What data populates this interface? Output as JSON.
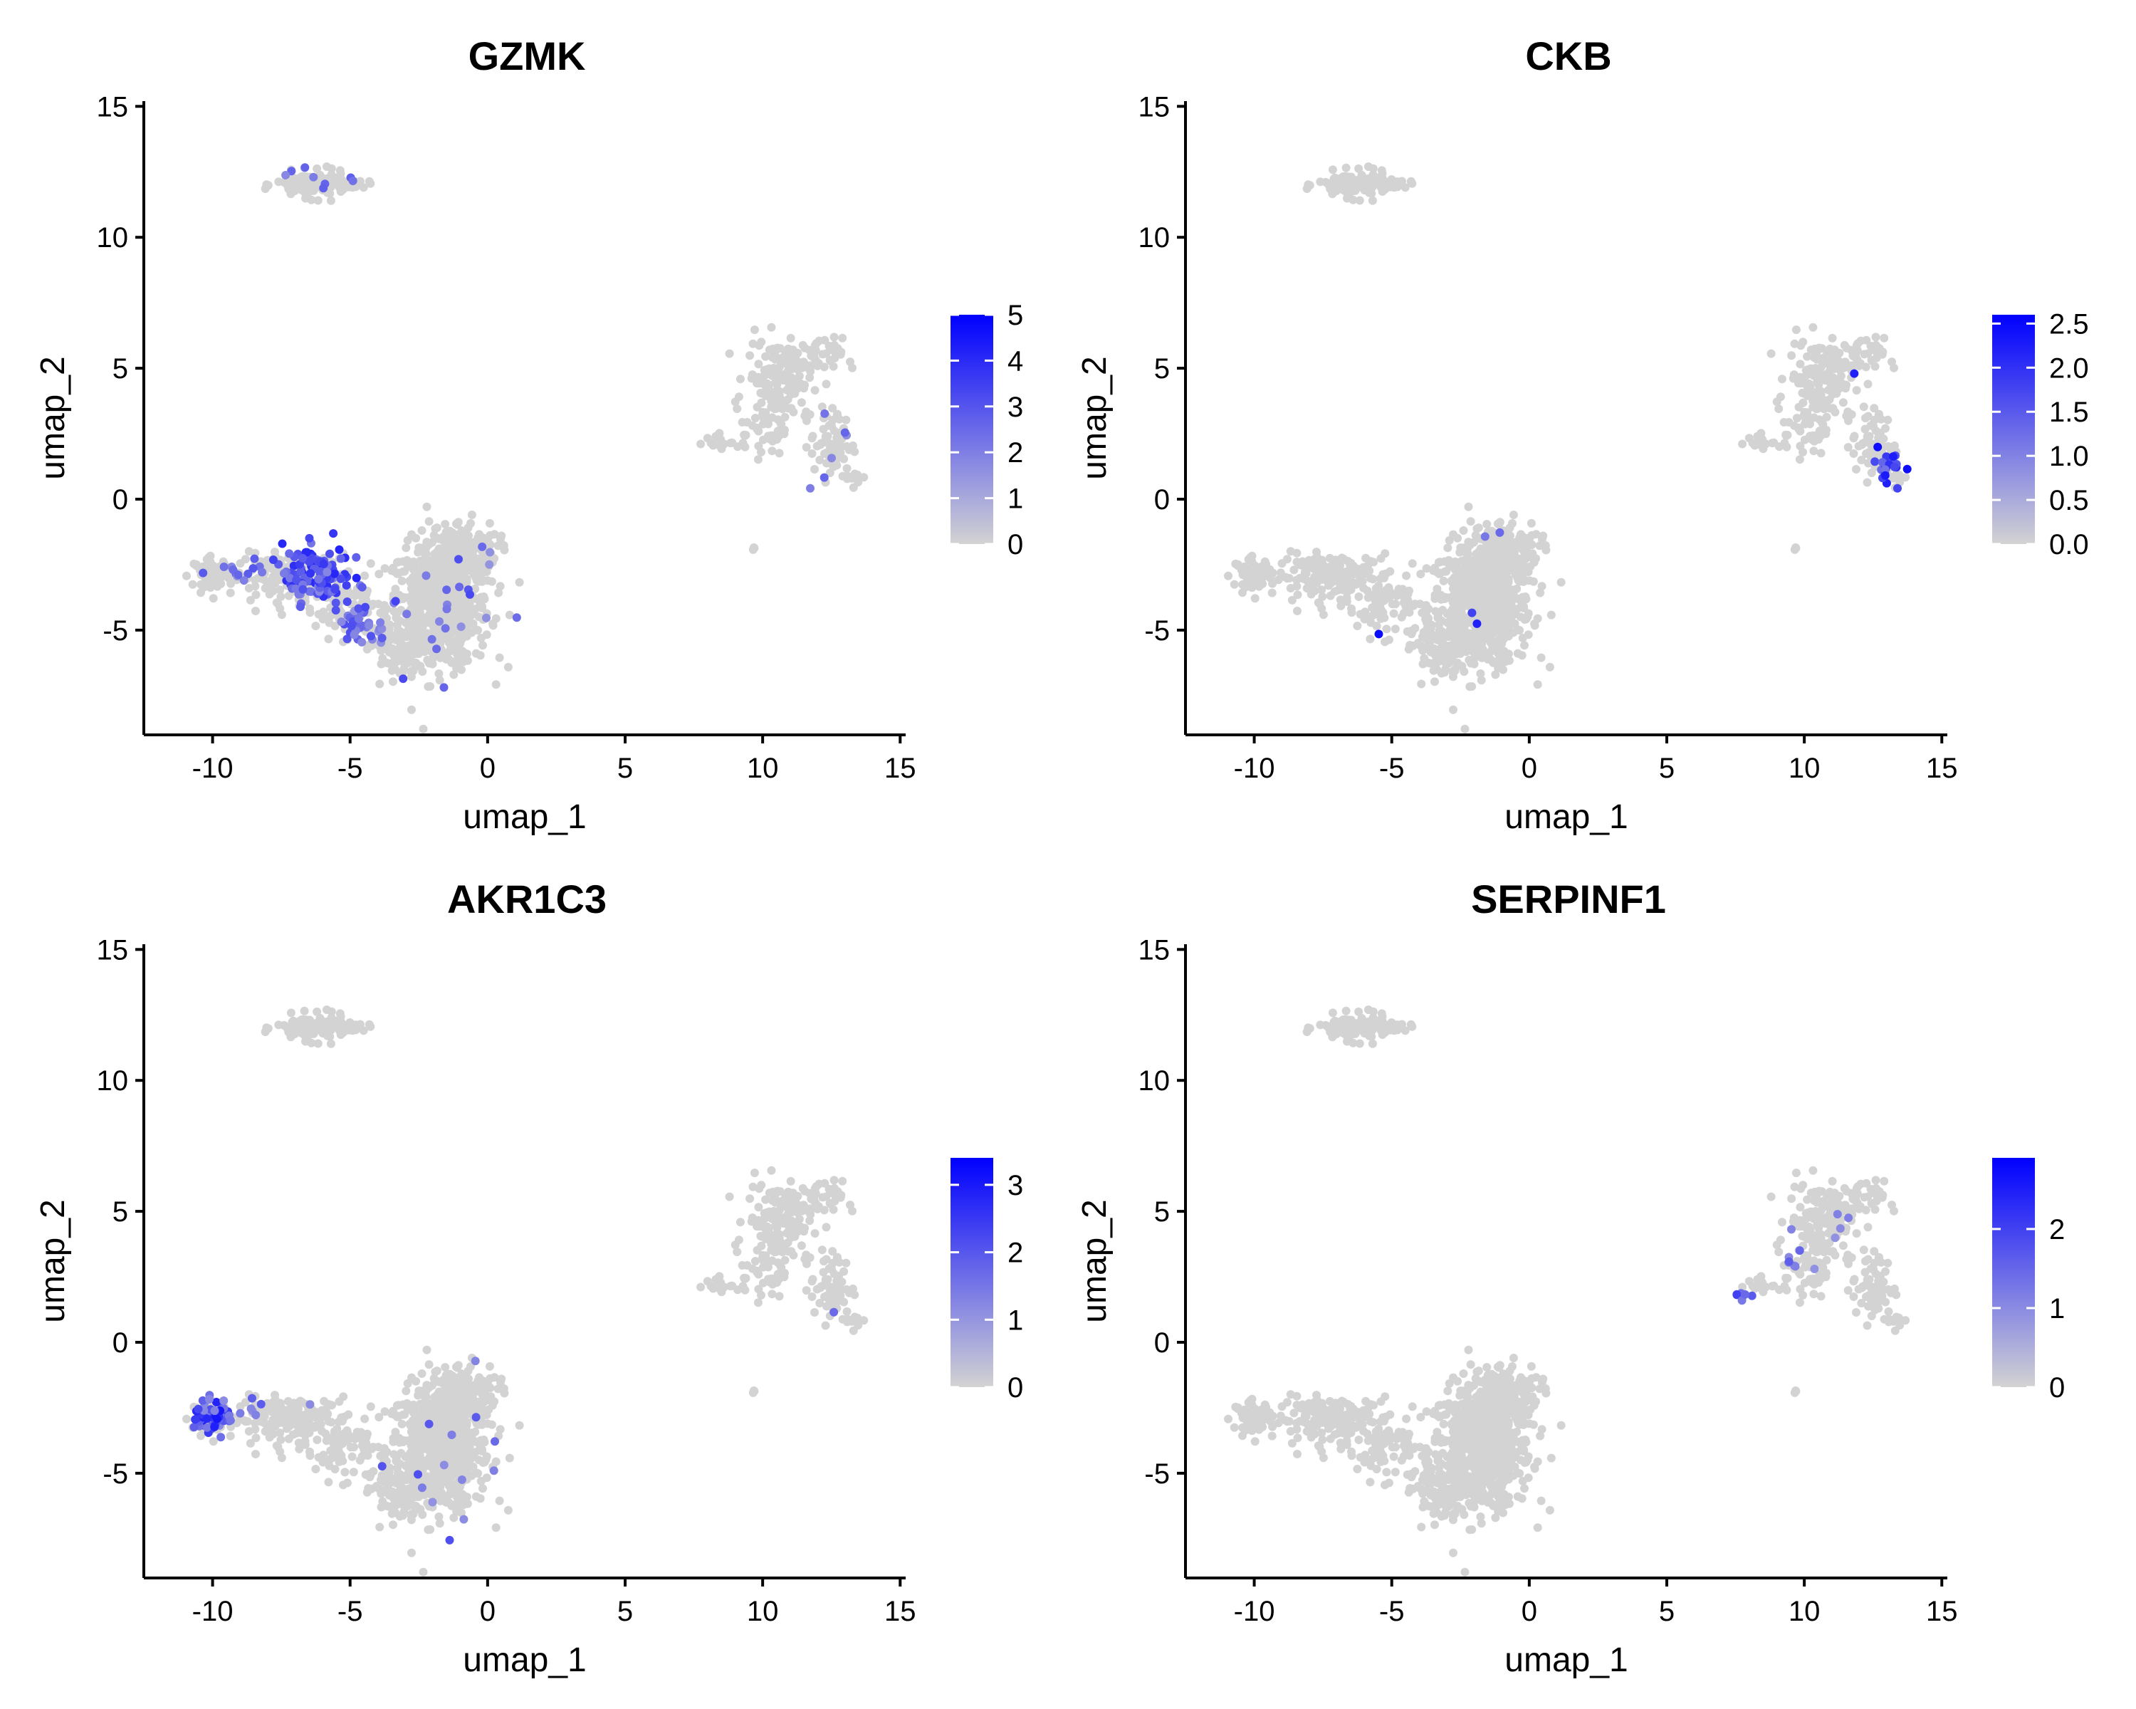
{
  "chart_data": [
    {
      "type": "scatter",
      "title": "GZMK",
      "xlabel": "umap_1",
      "ylabel": "umap_2",
      "xlim": [
        -12.5,
        15.2
      ],
      "ylim": [
        -9,
        15.2
      ],
      "xticks": [
        -10,
        -5,
        0,
        5,
        10,
        15
      ],
      "yticks": [
        -5,
        0,
        5,
        10,
        15
      ],
      "color_low": "#d3d3d3",
      "color_high": "#0000ff",
      "legend": {
        "min": 0,
        "max": 5,
        "ticks": [
          0,
          1,
          2,
          3,
          4,
          5
        ]
      },
      "highlights": [
        {
          "x": -6.2,
          "y": -2.9,
          "sx": 0.75,
          "sy": 0.7,
          "n": 130,
          "lo": 0.35,
          "hi": 0.85
        },
        {
          "x": -4.6,
          "y": -4.8,
          "sx": 0.6,
          "sy": 0.6,
          "n": 45,
          "lo": 0.3,
          "hi": 0.7
        },
        {
          "x": -9.0,
          "y": -2.7,
          "sx": 1.1,
          "sy": 0.35,
          "n": 14,
          "lo": 0.3,
          "hi": 0.6
        },
        {
          "x": -1.5,
          "y": -3.8,
          "sx": 1.3,
          "sy": 1.6,
          "n": 22,
          "lo": 0.3,
          "hi": 0.7
        },
        {
          "x": -6.0,
          "y": 12.2,
          "sx": 0.8,
          "sy": 0.3,
          "n": 8,
          "lo": 0.3,
          "hi": 0.6
        },
        {
          "x": 12.3,
          "y": 2.2,
          "sx": 0.9,
          "sy": 0.8,
          "n": 6,
          "lo": 0.3,
          "hi": 0.55
        }
      ]
    },
    {
      "type": "scatter",
      "title": "CKB",
      "xlabel": "umap_1",
      "ylabel": "umap_2",
      "xlim": [
        -12.5,
        15.2
      ],
      "ylim": [
        -9,
        15.2
      ],
      "xticks": [
        -10,
        -5,
        0,
        5,
        10,
        15
      ],
      "yticks": [
        -5,
        0,
        5,
        10,
        15
      ],
      "color_low": "#d3d3d3",
      "color_high": "#0000ff",
      "legend": {
        "min": 0,
        "max": 2.6,
        "ticks": [
          "0.0",
          "0.5",
          "1.0",
          "1.5",
          "2.0",
          "2.5"
        ]
      },
      "highlights": [
        {
          "x": 13.1,
          "y": 1.3,
          "sx": 0.35,
          "sy": 0.5,
          "n": 22,
          "lo": 0.4,
          "hi": 0.95
        },
        {
          "x": 11.7,
          "y": 4.7,
          "sx": 0.1,
          "sy": 0.1,
          "n": 1,
          "lo": 0.85,
          "hi": 0.85
        },
        {
          "x": -5.4,
          "y": -5.2,
          "sx": 0.05,
          "sy": 0.05,
          "n": 1,
          "lo": 0.95,
          "hi": 0.95
        },
        {
          "x": -2.1,
          "y": -4.5,
          "sx": 0.2,
          "sy": 0.2,
          "n": 2,
          "lo": 0.6,
          "hi": 0.85
        },
        {
          "x": -1.4,
          "y": -1.2,
          "sx": 0.3,
          "sy": 0.3,
          "n": 2,
          "lo": 0.4,
          "hi": 0.6
        }
      ]
    },
    {
      "type": "scatter",
      "title": "AKR1C3",
      "xlabel": "umap_1",
      "ylabel": "umap_2",
      "xlim": [
        -12.5,
        15.2
      ],
      "ylim": [
        -9,
        15.2
      ],
      "xticks": [
        -10,
        -5,
        0,
        5,
        10,
        15
      ],
      "yticks": [
        -5,
        0,
        5,
        10,
        15
      ],
      "color_low": "#d3d3d3",
      "color_high": "#0000ff",
      "legend": {
        "min": 0,
        "max": 3.4,
        "ticks": [
          0,
          1,
          2,
          3
        ]
      },
      "highlights": [
        {
          "x": -10.0,
          "y": -2.9,
          "sx": 0.4,
          "sy": 0.45,
          "n": 50,
          "lo": 0.35,
          "hi": 0.9
        },
        {
          "x": -8.6,
          "y": -2.6,
          "sx": 0.7,
          "sy": 0.35,
          "n": 10,
          "lo": 0.3,
          "hi": 0.6
        },
        {
          "x": -1.5,
          "y": -4.2,
          "sx": 1.3,
          "sy": 1.5,
          "n": 14,
          "lo": 0.3,
          "hi": 0.65
        },
        {
          "x": 12.5,
          "y": 1.1,
          "sx": 0.1,
          "sy": 0.1,
          "n": 1,
          "lo": 0.5,
          "hi": 0.5
        }
      ]
    },
    {
      "type": "scatter",
      "title": "SERPINF1",
      "xlabel": "umap_1",
      "ylabel": "umap_2",
      "xlim": [
        -12.5,
        15.2
      ],
      "ylim": [
        -9,
        15.2
      ],
      "xticks": [
        -10,
        -5,
        0,
        5,
        10,
        15
      ],
      "yticks": [
        -5,
        0,
        5,
        10,
        15
      ],
      "color_low": "#d3d3d3",
      "color_high": "#0000ff",
      "legend": {
        "min": 0,
        "max": 2.9,
        "ticks": [
          0,
          1,
          2
        ]
      },
      "highlights": [
        {
          "x": 7.6,
          "y": 1.85,
          "sx": 0.3,
          "sy": 0.15,
          "n": 6,
          "lo": 0.4,
          "hi": 0.9
        },
        {
          "x": 9.6,
          "y": 3.2,
          "sx": 0.6,
          "sy": 0.8,
          "n": 8,
          "lo": 0.3,
          "hi": 0.6
        },
        {
          "x": 11.0,
          "y": 4.6,
          "sx": 0.6,
          "sy": 0.5,
          "n": 4,
          "lo": 0.3,
          "hi": 0.5
        }
      ]
    }
  ]
}
